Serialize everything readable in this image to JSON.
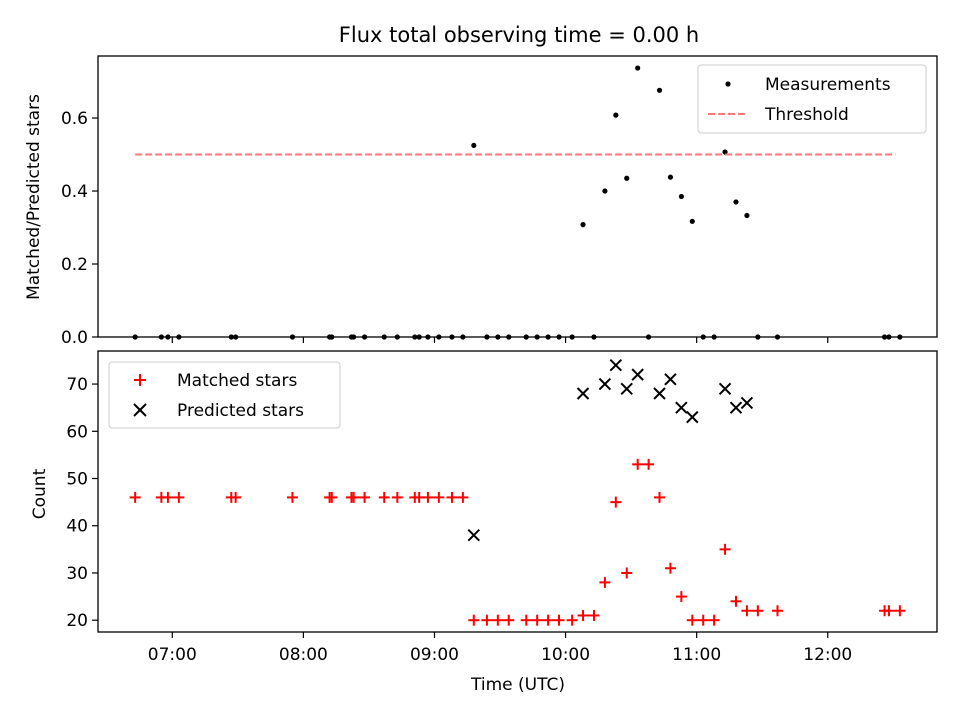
{
  "chart_data": {
    "title": "Flux total observing time = 0.00 h",
    "x_ticks": [
      "07:00",
      "08:00",
      "09:00",
      "10:00",
      "11:00",
      "12:00"
    ],
    "x_tick_hours": [
      7,
      8,
      9,
      10,
      11,
      12
    ],
    "xlabel": "Time (UTC)",
    "xlim": [
      "06:26",
      "12:50"
    ],
    "panels": [
      {
        "type": "scatter",
        "ylabel": "Matched/Predicted stars",
        "ylim": [
          0,
          0.77
        ],
        "y_ticks": [
          "0.0",
          "0.2",
          "0.4",
          "0.6"
        ],
        "legend_position": "upper right",
        "series": [
          {
            "name": "Measurements",
            "marker": "dot",
            "color": "#000000",
            "points": [
              [
                "06:43",
                0
              ],
              [
                "06:55",
                0
              ],
              [
                "06:58",
                0
              ],
              [
                "07:03",
                0
              ],
              [
                "07:27",
                0
              ],
              [
                "07:29",
                0
              ],
              [
                "07:55",
                0
              ],
              [
                "08:12",
                0
              ],
              [
                "08:13",
                0
              ],
              [
                "08:22",
                0
              ],
              [
                "08:23",
                0
              ],
              [
                "08:28",
                0
              ],
              [
                "08:37",
                0
              ],
              [
                "08:43",
                0
              ],
              [
                "08:51",
                0
              ],
              [
                "08:53",
                0
              ],
              [
                "08:57",
                0
              ],
              [
                "09:02",
                0
              ],
              [
                "09:08",
                0
              ],
              [
                "09:13",
                0
              ],
              [
                "09:18",
                0.525
              ],
              [
                "09:24",
                0
              ],
              [
                "09:29",
                0
              ],
              [
                "09:34",
                0
              ],
              [
                "09:42",
                0
              ],
              [
                "09:47",
                0
              ],
              [
                "09:52",
                0
              ],
              [
                "09:57",
                0
              ],
              [
                "10:03",
                0
              ],
              [
                "10:08",
                0.308
              ],
              [
                "10:13",
                0
              ],
              [
                "10:18",
                0.4
              ],
              [
                "10:23",
                0.608
              ],
              [
                "10:28",
                0.435
              ],
              [
                "10:33",
                0.737
              ],
              [
                "10:38",
                0
              ],
              [
                "10:43",
                0.676
              ],
              [
                "10:48",
                0.438
              ],
              [
                "10:53",
                0.385
              ],
              [
                "10:58",
                0.317
              ],
              [
                "11:03",
                0
              ],
              [
                "11:08",
                0
              ],
              [
                "11:13",
                0.507
              ],
              [
                "11:18",
                0.37
              ],
              [
                "11:23",
                0.333
              ],
              [
                "11:28",
                0
              ],
              [
                "11:37",
                0
              ],
              [
                "12:26",
                0
              ],
              [
                "12:28",
                0
              ],
              [
                "12:33",
                0
              ]
            ]
          },
          {
            "name": "Threshold",
            "style": "dashed",
            "color": "#ff7777",
            "points": [
              [
                "06:43",
                0.5
              ],
              [
                "12:31",
                0.5
              ]
            ]
          }
        ]
      },
      {
        "type": "scatter",
        "ylabel": "Count",
        "ylim": [
          17.5,
          77
        ],
        "y_ticks": [
          "20",
          "30",
          "40",
          "50",
          "60",
          "70"
        ],
        "legend_position": "upper left",
        "series": [
          {
            "name": "Matched stars",
            "marker": "plus",
            "color": "#ff0000",
            "points": [
              [
                "06:43",
                46
              ],
              [
                "06:55",
                46
              ],
              [
                "06:58",
                46
              ],
              [
                "07:03",
                46
              ],
              [
                "07:27",
                46
              ],
              [
                "07:29",
                46
              ],
              [
                "07:55",
                46
              ],
              [
                "08:12",
                46
              ],
              [
                "08:13",
                46
              ],
              [
                "08:22",
                46
              ],
              [
                "08:23",
                46
              ],
              [
                "08:28",
                46
              ],
              [
                "08:37",
                46
              ],
              [
                "08:43",
                46
              ],
              [
                "08:51",
                46
              ],
              [
                "08:53",
                46
              ],
              [
                "08:57",
                46
              ],
              [
                "09:02",
                46
              ],
              [
                "09:08",
                46
              ],
              [
                "09:13",
                46
              ],
              [
                "09:18",
                20
              ],
              [
                "09:24",
                20
              ],
              [
                "09:29",
                20
              ],
              [
                "09:34",
                20
              ],
              [
                "09:42",
                20
              ],
              [
                "09:47",
                20
              ],
              [
                "09:52",
                20
              ],
              [
                "09:57",
                20
              ],
              [
                "10:03",
                20
              ],
              [
                "10:08",
                21
              ],
              [
                "10:13",
                21
              ],
              [
                "10:18",
                28
              ],
              [
                "10:23",
                45
              ],
              [
                "10:28",
                30
              ],
              [
                "10:33",
                53
              ],
              [
                "10:38",
                53
              ],
              [
                "10:43",
                46
              ],
              [
                "10:48",
                31
              ],
              [
                "10:53",
                25
              ],
              [
                "10:58",
                20
              ],
              [
                "11:03",
                20
              ],
              [
                "11:08",
                20
              ],
              [
                "11:13",
                35
              ],
              [
                "11:18",
                24
              ],
              [
                "11:23",
                22
              ],
              [
                "11:28",
                22
              ],
              [
                "11:37",
                22
              ],
              [
                "12:26",
                22
              ],
              [
                "12:28",
                22
              ],
              [
                "12:33",
                22
              ]
            ]
          },
          {
            "name": "Predicted stars",
            "marker": "x",
            "color": "#000000",
            "points": [
              [
                "09:18",
                38
              ],
              [
                "10:08",
                68
              ],
              [
                "10:18",
                70
              ],
              [
                "10:23",
                74
              ],
              [
                "10:28",
                69
              ],
              [
                "10:33",
                72
              ],
              [
                "10:43",
                68
              ],
              [
                "10:48",
                71
              ],
              [
                "10:53",
                65
              ],
              [
                "10:58",
                63
              ],
              [
                "11:13",
                69
              ],
              [
                "11:18",
                65
              ],
              [
                "11:23",
                66
              ]
            ]
          }
        ]
      }
    ]
  }
}
